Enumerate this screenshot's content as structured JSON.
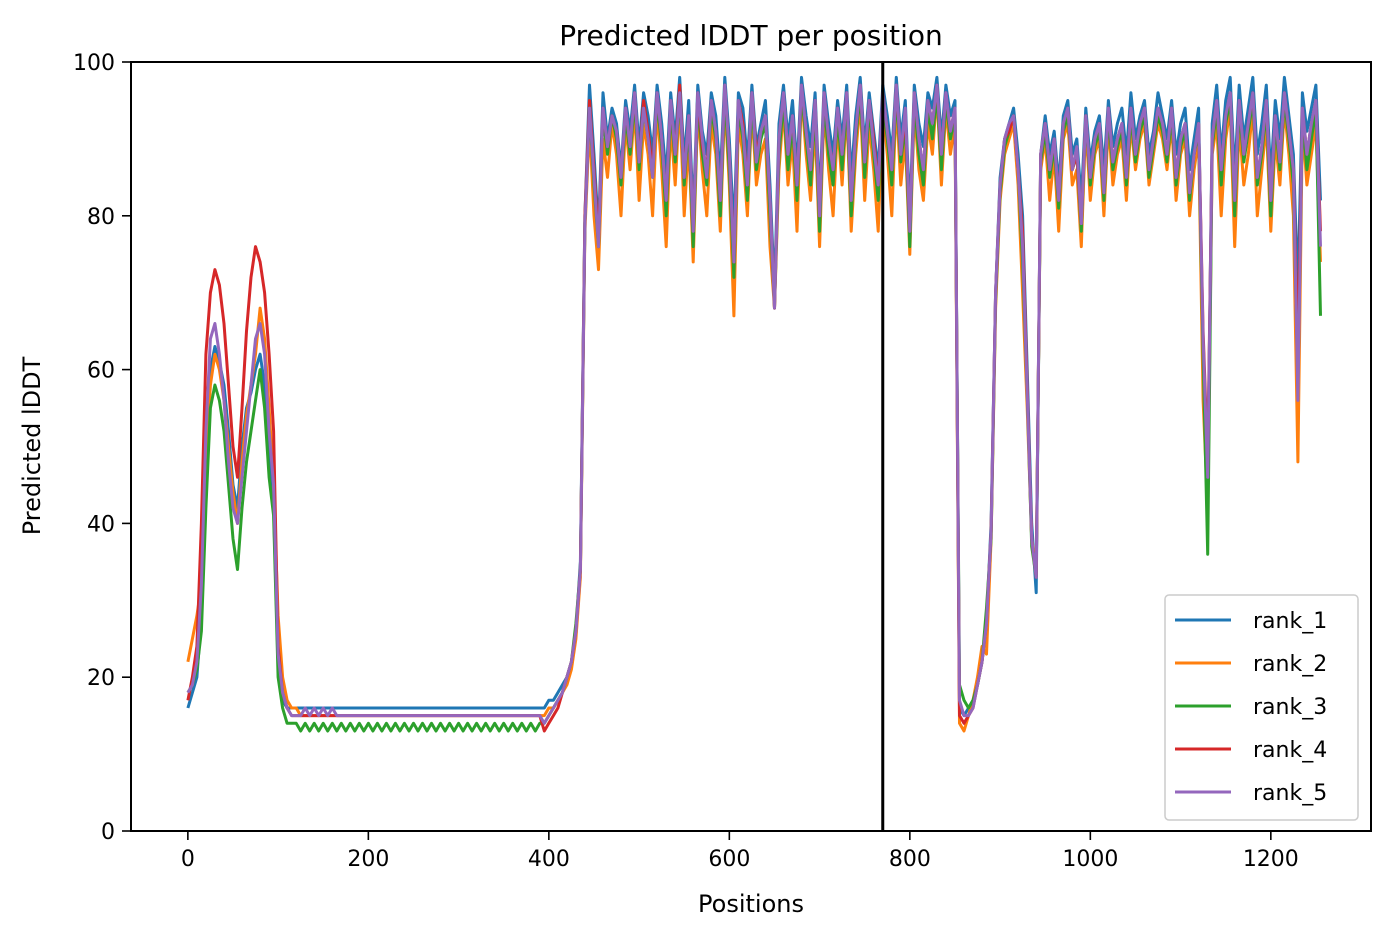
{
  "chart_data": {
    "type": "line",
    "title": "Predicted lDDT per position",
    "xlabel": "Positions",
    "ylabel": "Predicted lDDT",
    "xlim": [
      -63,
      1311
    ],
    "ylim": [
      0,
      100
    ],
    "xticks": [
      0,
      200,
      400,
      600,
      800,
      1000,
      1200
    ],
    "yticks": [
      0,
      20,
      40,
      60,
      80,
      100
    ],
    "grid": false,
    "legend_position": "lower-right",
    "chain_break": 770,
    "x_start": 0,
    "x_step": 5,
    "series": [
      {
        "name": "rank_1",
        "color": "#1f77b4",
        "values": [
          16,
          18,
          20,
          28,
          45,
          60,
          63,
          61,
          58,
          52,
          45,
          42,
          50,
          55,
          57,
          60,
          62,
          58,
          50,
          42,
          22,
          17,
          16,
          16,
          16,
          16,
          16,
          16,
          16,
          16,
          16,
          16,
          16,
          16,
          16,
          16,
          16,
          16,
          16,
          16,
          16,
          16,
          16,
          16,
          16,
          16,
          16,
          16,
          16,
          16,
          16,
          16,
          16,
          16,
          16,
          16,
          16,
          16,
          16,
          16,
          16,
          16,
          16,
          16,
          16,
          16,
          16,
          16,
          16,
          16,
          16,
          16,
          16,
          16,
          16,
          16,
          16,
          16,
          16,
          16,
          17,
          17,
          18,
          19,
          20,
          22,
          26,
          35,
          80,
          97,
          88,
          78,
          96,
          90,
          94,
          92,
          86,
          95,
          91,
          97,
          89,
          96,
          93,
          88,
          97,
          92,
          85,
          96,
          90,
          98,
          87,
          95,
          80,
          97,
          91,
          88,
          96,
          93,
          85,
          98,
          90,
          78,
          96,
          94,
          87,
          97,
          89,
          92,
          95,
          84,
          70,
          92,
          97,
          90,
          95,
          86,
          98,
          93,
          89,
          96,
          82,
          97,
          92,
          88,
          95,
          90,
          97,
          85,
          93,
          98,
          89,
          96,
          91,
          86,
          97,
          93,
          88,
          98,
          90,
          95,
          80,
          97,
          92,
          89,
          96,
          94,
          98,
          90,
          97,
          93,
          95,
          16,
          15,
          16,
          17,
          19,
          22,
          27,
          40,
          70,
          85,
          90,
          92,
          94,
          88,
          80,
          60,
          40,
          31,
          88,
          93,
          88,
          91,
          84,
          93,
          95,
          88,
          90,
          82,
          94,
          87,
          91,
          93,
          86,
          95,
          89,
          92,
          94,
          88,
          96,
          90,
          93,
          95,
          88,
          91,
          96,
          93,
          90,
          95,
          88,
          92,
          94,
          86,
          90,
          94,
          60,
          45,
          92,
          97,
          88,
          95,
          98,
          85,
          97,
          90,
          94,
          98,
          88,
          92,
          97,
          85,
          95,
          90,
          98,
          93,
          88,
          70,
          96,
          91,
          94,
          97,
          82
        ]
      },
      {
        "name": "rank_2",
        "color": "#ff7f0e",
        "values": [
          22,
          25,
          28,
          32,
          48,
          58,
          62,
          60,
          56,
          50,
          44,
          40,
          48,
          54,
          58,
          62,
          68,
          64,
          55,
          45,
          28,
          20,
          17,
          16,
          16,
          15,
          15,
          15,
          15,
          15,
          15,
          15,
          15,
          15,
          15,
          15,
          15,
          15,
          15,
          15,
          15,
          15,
          15,
          15,
          15,
          15,
          15,
          15,
          15,
          15,
          15,
          15,
          15,
          15,
          15,
          15,
          15,
          15,
          15,
          15,
          15,
          15,
          15,
          15,
          15,
          15,
          15,
          15,
          15,
          15,
          15,
          15,
          15,
          15,
          15,
          15,
          15,
          15,
          15,
          15,
          16,
          16,
          17,
          18,
          19,
          21,
          25,
          33,
          78,
          92,
          80,
          73,
          90,
          85,
          92,
          88,
          80,
          92,
          86,
          94,
          82,
          92,
          88,
          80,
          94,
          86,
          76,
          92,
          84,
          95,
          80,
          90,
          74,
          94,
          86,
          80,
          92,
          88,
          78,
          95,
          84,
          67,
          92,
          88,
          80,
          94,
          84,
          88,
          90,
          76,
          68,
          86,
          94,
          84,
          90,
          78,
          96,
          88,
          82,
          92,
          76,
          94,
          86,
          80,
          92,
          84,
          94,
          78,
          88,
          95,
          82,
          92,
          86,
          78,
          94,
          88,
          80,
          95,
          84,
          90,
          75,
          94,
          86,
          82,
          92,
          88,
          96,
          84,
          94,
          88,
          92,
          14,
          13,
          15,
          17,
          20,
          24,
          23,
          38,
          68,
          82,
          88,
          90,
          92,
          84,
          70,
          55,
          38,
          34,
          86,
          90,
          82,
          88,
          78,
          90,
          92,
          84,
          86,
          76,
          92,
          82,
          88,
          90,
          80,
          92,
          84,
          88,
          90,
          82,
          92,
          86,
          90,
          92,
          84,
          88,
          92,
          90,
          86,
          92,
          82,
          88,
          90,
          80,
          86,
          90,
          56,
          42,
          88,
          92,
          80,
          90,
          94,
          76,
          92,
          84,
          88,
          94,
          80,
          86,
          92,
          78,
          90,
          84,
          94,
          88,
          80,
          48,
          92,
          84,
          88,
          92,
          74
        ]
      },
      {
        "name": "rank_3",
        "color": "#2ca02c",
        "values": [
          18,
          19,
          21,
          26,
          42,
          55,
          58,
          56,
          52,
          45,
          38,
          34,
          42,
          48,
          52,
          56,
          60,
          55,
          46,
          41,
          20,
          16,
          14,
          14,
          14,
          13,
          14,
          13,
          14,
          13,
          14,
          13,
          14,
          13,
          14,
          13,
          14,
          13,
          14,
          13,
          14,
          13,
          14,
          13,
          14,
          13,
          14,
          13,
          14,
          13,
          14,
          13,
          14,
          13,
          14,
          13,
          14,
          13,
          14,
          13,
          14,
          13,
          14,
          13,
          14,
          13,
          14,
          13,
          14,
          13,
          14,
          13,
          14,
          13,
          14,
          13,
          14,
          13,
          14,
          14,
          15,
          16,
          17,
          18,
          20,
          22,
          27,
          34,
          79,
          94,
          84,
          76,
          93,
          88,
          93,
          90,
          84,
          93,
          88,
          95,
          86,
          94,
          90,
          85,
          95,
          89,
          80,
          94,
          87,
          96,
          84,
          92,
          76,
          95,
          88,
          84,
          94,
          90,
          80,
          96,
          86,
          72,
          94,
          90,
          82,
          95,
          86,
          90,
          92,
          80,
          68,
          88,
          95,
          86,
          92,
          82,
          96,
          90,
          84,
          94,
          78,
          95,
          88,
          84,
          93,
          86,
          95,
          80,
          90,
          96,
          85,
          94,
          88,
          82,
          95,
          90,
          84,
          96,
          87,
          92,
          76,
          95,
          88,
          84,
          94,
          90,
          96,
          86,
          95,
          90,
          93,
          19,
          17,
          16,
          17,
          19,
          22,
          29,
          38,
          69,
          83,
          89,
          91,
          93,
          86,
          74,
          57,
          37,
          33,
          87,
          91,
          85,
          89,
          81,
          91,
          93,
          86,
          88,
          78,
          93,
          84,
          89,
          91,
          82,
          93,
          86,
          89,
          91,
          84,
          93,
          87,
          91,
          93,
          85,
          89,
          93,
          91,
          87,
          93,
          84,
          89,
          91,
          82,
          88,
          91,
          62,
          36,
          89,
          94,
          84,
          92,
          95,
          80,
          94,
          87,
          91,
          95,
          84,
          88,
          94,
          80,
          92,
          86,
          95,
          90,
          84,
          58,
          93,
          86,
          90,
          94,
          67
        ]
      },
      {
        "name": "rank_4",
        "color": "#d62728",
        "values": [
          17,
          20,
          24,
          40,
          62,
          70,
          73,
          71,
          66,
          58,
          50,
          46,
          55,
          65,
          72,
          76,
          74,
          70,
          62,
          52,
          24,
          18,
          16,
          15,
          15,
          15,
          15,
          15,
          15,
          15,
          15,
          15,
          15,
          15,
          15,
          15,
          15,
          15,
          15,
          15,
          15,
          15,
          15,
          15,
          15,
          15,
          15,
          15,
          15,
          15,
          15,
          15,
          15,
          15,
          15,
          15,
          15,
          15,
          15,
          15,
          15,
          15,
          15,
          15,
          15,
          15,
          15,
          15,
          15,
          15,
          15,
          15,
          15,
          15,
          15,
          15,
          15,
          15,
          15,
          13,
          14,
          15,
          16,
          18,
          20,
          22,
          26,
          34,
          80,
          95,
          86,
          77,
          94,
          89,
          93,
          91,
          85,
          94,
          89,
          96,
          87,
          95,
          91,
          86,
          96,
          90,
          82,
          95,
          88,
          97,
          85,
          93,
          78,
          96,
          89,
          86,
          95,
          91,
          82,
          97,
          88,
          74,
          95,
          92,
          84,
          96,
          88,
          91,
          93,
          82,
          68,
          90,
          96,
          88,
          93,
          84,
          97,
          91,
          86,
          95,
          80,
          96,
          90,
          86,
          94,
          88,
          96,
          82,
          91,
          97,
          87,
          95,
          90,
          84,
          96,
          91,
          86,
          97,
          88,
          93,
          78,
          96,
          90,
          86,
          95,
          92,
          97,
          88,
          96,
          91,
          94,
          15,
          14,
          15,
          16,
          19,
          22,
          27,
          39,
          70,
          84,
          90,
          91,
          93,
          86,
          78,
          58,
          38,
          33,
          88,
          92,
          86,
          90,
          82,
          92,
          94,
          86,
          88,
          79,
          93,
          85,
          90,
          92,
          83,
          94,
          87,
          90,
          92,
          85,
          94,
          88,
          92,
          94,
          86,
          90,
          94,
          92,
          88,
          94,
          85,
          90,
          92,
          83,
          88,
          92,
          65,
          48,
          90,
          95,
          86,
          93,
          96,
          82,
          95,
          88,
          92,
          96,
          85,
          89,
          95,
          82,
          93,
          87,
          96,
          91,
          86,
          62,
          94,
          88,
          92,
          95,
          78
        ]
      },
      {
        "name": "rank_5",
        "color": "#9467bd",
        "values": [
          18,
          19,
          22,
          32,
          52,
          64,
          66,
          62,
          56,
          48,
          42,
          40,
          46,
          52,
          58,
          64,
          66,
          62,
          52,
          45,
          23,
          18,
          16,
          15,
          15,
          15,
          16,
          15,
          16,
          15,
          16,
          15,
          16,
          15,
          15,
          15,
          15,
          15,
          15,
          15,
          15,
          15,
          15,
          15,
          15,
          15,
          15,
          15,
          15,
          15,
          15,
          15,
          15,
          15,
          15,
          15,
          15,
          15,
          15,
          15,
          15,
          15,
          15,
          15,
          15,
          15,
          15,
          15,
          15,
          15,
          15,
          15,
          15,
          15,
          15,
          15,
          15,
          15,
          15,
          14,
          15,
          16,
          17,
          18,
          20,
          22,
          26,
          34,
          79,
          94,
          85,
          76,
          94,
          89,
          93,
          91,
          85,
          94,
          89,
          96,
          87,
          94,
          90,
          85,
          96,
          90,
          82,
          95,
          88,
          96,
          85,
          93,
          78,
          96,
          90,
          85,
          95,
          91,
          82,
          97,
          88,
          74,
          95,
          91,
          84,
          96,
          87,
          91,
          93,
          82,
          68,
          90,
          96,
          88,
          93,
          84,
          97,
          91,
          86,
          95,
          80,
          96,
          90,
          86,
          94,
          88,
          96,
          82,
          91,
          97,
          87,
          95,
          89,
          84,
          96,
          91,
          86,
          97,
          88,
          94,
          78,
          96,
          90,
          86,
          95,
          92,
          97,
          88,
          96,
          91,
          94,
          17,
          15,
          15,
          16,
          19,
          22,
          27,
          39,
          70,
          84,
          90,
          92,
          93,
          86,
          76,
          57,
          38,
          33,
          88,
          92,
          86,
          90,
          82,
          92,
          94,
          86,
          89,
          79,
          93,
          85,
          90,
          92,
          83,
          94,
          87,
          90,
          92,
          85,
          94,
          88,
          92,
          94,
          86,
          90,
          94,
          92,
          88,
          94,
          85,
          90,
          92,
          83,
          88,
          92,
          64,
          46,
          90,
          95,
          86,
          93,
          96,
          82,
          95,
          88,
          92,
          96,
          85,
          89,
          95,
          82,
          93,
          87,
          96,
          91,
          86,
          56,
          94,
          88,
          92,
          95,
          76
        ]
      }
    ]
  }
}
